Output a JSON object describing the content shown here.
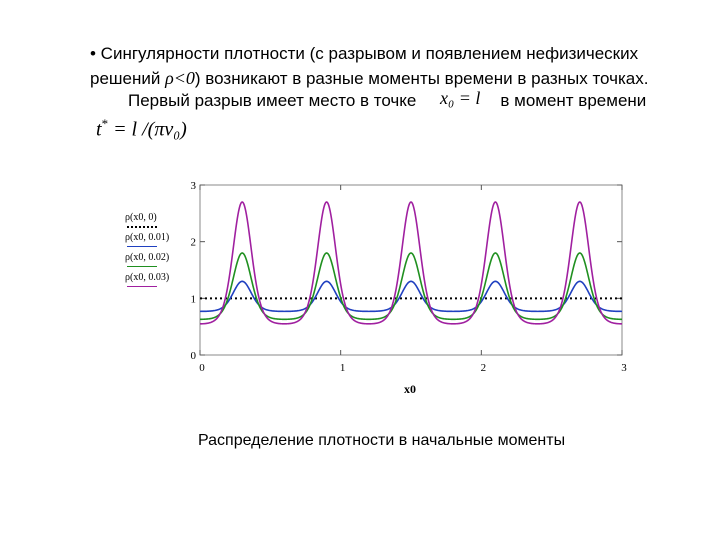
{
  "text": {
    "line1": "• Сингулярности плотности (с разрывом и появлением нефизических",
    "line2_a": "решений ",
    "line2_rho": "ρ<0",
    "line2_b": ") возникают в разные моменты времени в разных точках.",
    "line3_a": "Первый разрыв имеет место в точке",
    "line3_b": "в момент времени",
    "inline_math": "x₀ = l",
    "formula_t": "t",
    "formula_star": "*",
    "formula_rest": " = l /(πv₀)",
    "caption": "Распределение плотности в начальные моменты"
  },
  "colors": {
    "s0": "#a020a0",
    "s1": "#209020",
    "s2": "#2040c0",
    "s3": "#000000"
  },
  "chart_data": {
    "type": "line",
    "xlabel": "x0",
    "xlim": [
      0,
      3
    ],
    "ylim": [
      0,
      3
    ],
    "xticks": [
      "0",
      "1",
      "2",
      "3"
    ],
    "yticks": [
      "0",
      "1",
      "2",
      "3"
    ],
    "legend_placement": "left",
    "series": [
      {
        "name": "ρ(x0, 0)",
        "style": "dotted",
        "color": "#000000",
        "constant": 1.0
      },
      {
        "name": "ρ(x0, 0.01)",
        "style": "solid",
        "color": "#2040c0",
        "period": 0.6,
        "peak_x": 0.3,
        "max": 1.3,
        "min": 0.77
      },
      {
        "name": "ρ(x0, 0.02)",
        "style": "solid",
        "color": "#209020",
        "period": 0.6,
        "peak_x": 0.3,
        "max": 1.8,
        "min": 0.63
      },
      {
        "name": "ρ(x0, 0.03)",
        "style": "solid",
        "color": "#a020a0",
        "period": 0.6,
        "peak_x": 0.3,
        "max": 2.7,
        "min": 0.55
      }
    ]
  }
}
